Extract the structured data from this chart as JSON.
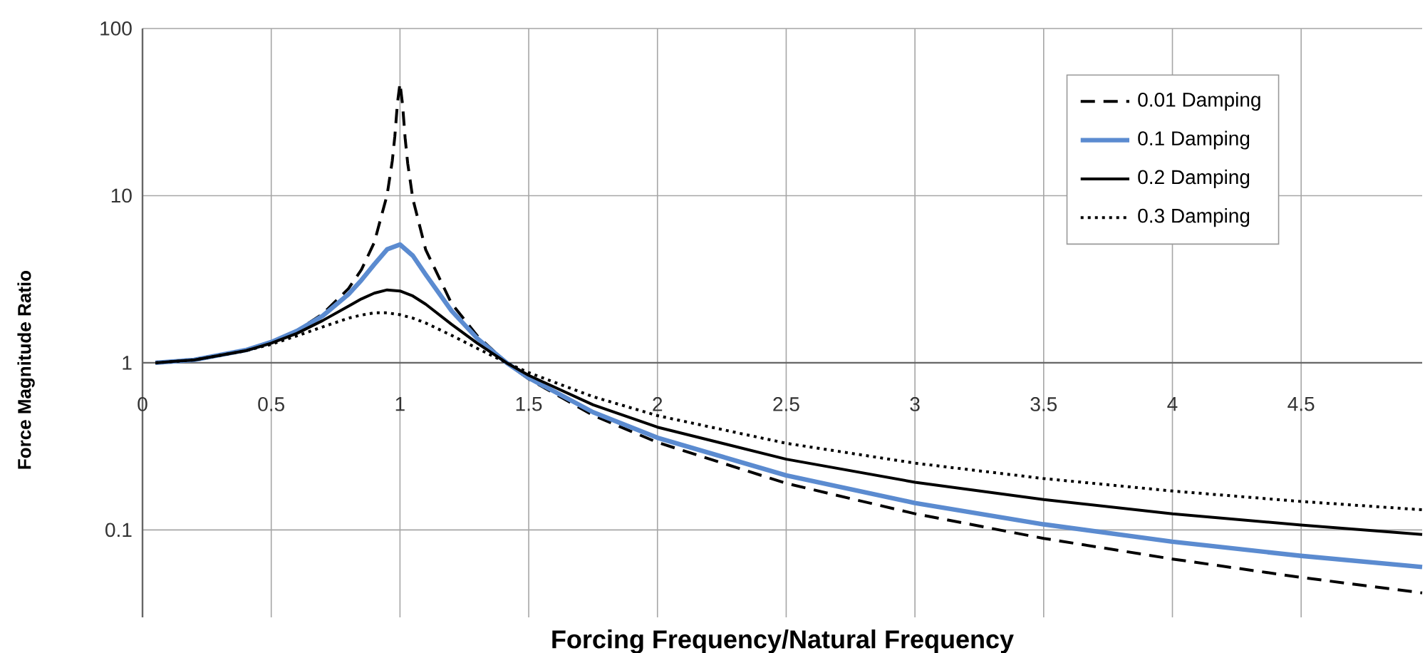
{
  "chart_data": {
    "type": "line",
    "xlabel": "Forcing Frequency/Natural Frequency",
    "ylabel": "Force Magnitude Ratio",
    "log": "y",
    "grid": true,
    "legend": "top right",
    "xlim": [
      0,
      4.97
    ],
    "ylim": [
      0.03,
      100
    ],
    "xticks": [
      0,
      0.5,
      1,
      1.5,
      2,
      2.5,
      3,
      3.5,
      4,
      4.5
    ],
    "yticks": [
      0.1,
      1,
      10,
      100
    ],
    "series": [
      {
        "name": "0.01 Damping",
        "color": "#000000",
        "line_style": "dashed",
        "x": [
          0.05,
          0.2,
          0.4,
          0.5,
          0.6,
          0.7,
          0.8,
          0.85,
          0.9,
          0.95,
          0.97,
          0.98,
          0.99,
          1,
          1.01,
          1.02,
          1.03,
          1.05,
          1.1,
          1.2,
          1.3,
          1.414,
          1.5,
          1.75,
          2,
          2.5,
          3,
          3.5,
          4,
          4.5,
          4.97
        ],
        "values": [
          1,
          1.04,
          1.19,
          1.33,
          1.56,
          1.96,
          2.78,
          3.6,
          5.24,
          10.1,
          16.1,
          22.6,
          35.6,
          47,
          35.1,
          22.1,
          15.6,
          9.56,
          4.74,
          2.27,
          1.45,
          1,
          0.8,
          0.485,
          0.334,
          0.19,
          0.125,
          0.089,
          0.067,
          0.052,
          0.042
        ]
      },
      {
        "name": "0.1 Damping",
        "color": "#5b8bd0",
        "line_style": "solid",
        "x": [
          0.05,
          0.2,
          0.4,
          0.5,
          0.6,
          0.7,
          0.8,
          0.85,
          0.9,
          0.95,
          1,
          1.05,
          1.1,
          1.2,
          1.3,
          1.414,
          1.5,
          1.75,
          2,
          2.5,
          3,
          3.5,
          4,
          4.5,
          4.97
        ],
        "values": [
          1,
          1.04,
          1.19,
          1.33,
          1.55,
          1.91,
          2.57,
          3.12,
          3.88,
          4.77,
          5.1,
          4.37,
          3.37,
          2.05,
          1.4,
          1,
          0.812,
          0.506,
          0.356,
          0.212,
          0.145,
          0.108,
          0.085,
          0.07,
          0.06
        ]
      },
      {
        "name": "0.2 Damping",
        "color": "#000000",
        "line_style": "solid",
        "x": [
          0.05,
          0.2,
          0.4,
          0.5,
          0.6,
          0.7,
          0.8,
          0.85,
          0.9,
          0.95,
          1,
          1.05,
          1.1,
          1.2,
          1.3,
          1.414,
          1.5,
          1.75,
          2,
          2.5,
          3,
          3.5,
          4,
          4.5,
          4.97
        ],
        "values": [
          1,
          1.04,
          1.18,
          1.31,
          1.5,
          1.79,
          2.18,
          2.41,
          2.61,
          2.73,
          2.69,
          2.51,
          2.24,
          1.7,
          1.31,
          1,
          0.841,
          0.56,
          0.412,
          0.265,
          0.193,
          0.152,
          0.125,
          0.107,
          0.094
        ]
      },
      {
        "name": "0.3 Damping",
        "color": "#000000",
        "line_style": "dotted",
        "x": [
          0.05,
          0.2,
          0.4,
          0.5,
          0.6,
          0.7,
          0.8,
          0.85,
          0.9,
          0.95,
          1,
          1.05,
          1.1,
          1.2,
          1.3,
          1.414,
          1.5,
          1.75,
          2,
          2.5,
          3,
          3.5,
          4,
          4.5,
          4.97
        ],
        "values": [
          1,
          1.04,
          1.18,
          1.29,
          1.45,
          1.64,
          1.85,
          1.93,
          1.99,
          1.99,
          1.94,
          1.85,
          1.73,
          1.46,
          1.22,
          1,
          0.873,
          0.627,
          0.483,
          0.33,
          0.251,
          0.203,
          0.171,
          0.148,
          0.132
        ]
      }
    ]
  }
}
